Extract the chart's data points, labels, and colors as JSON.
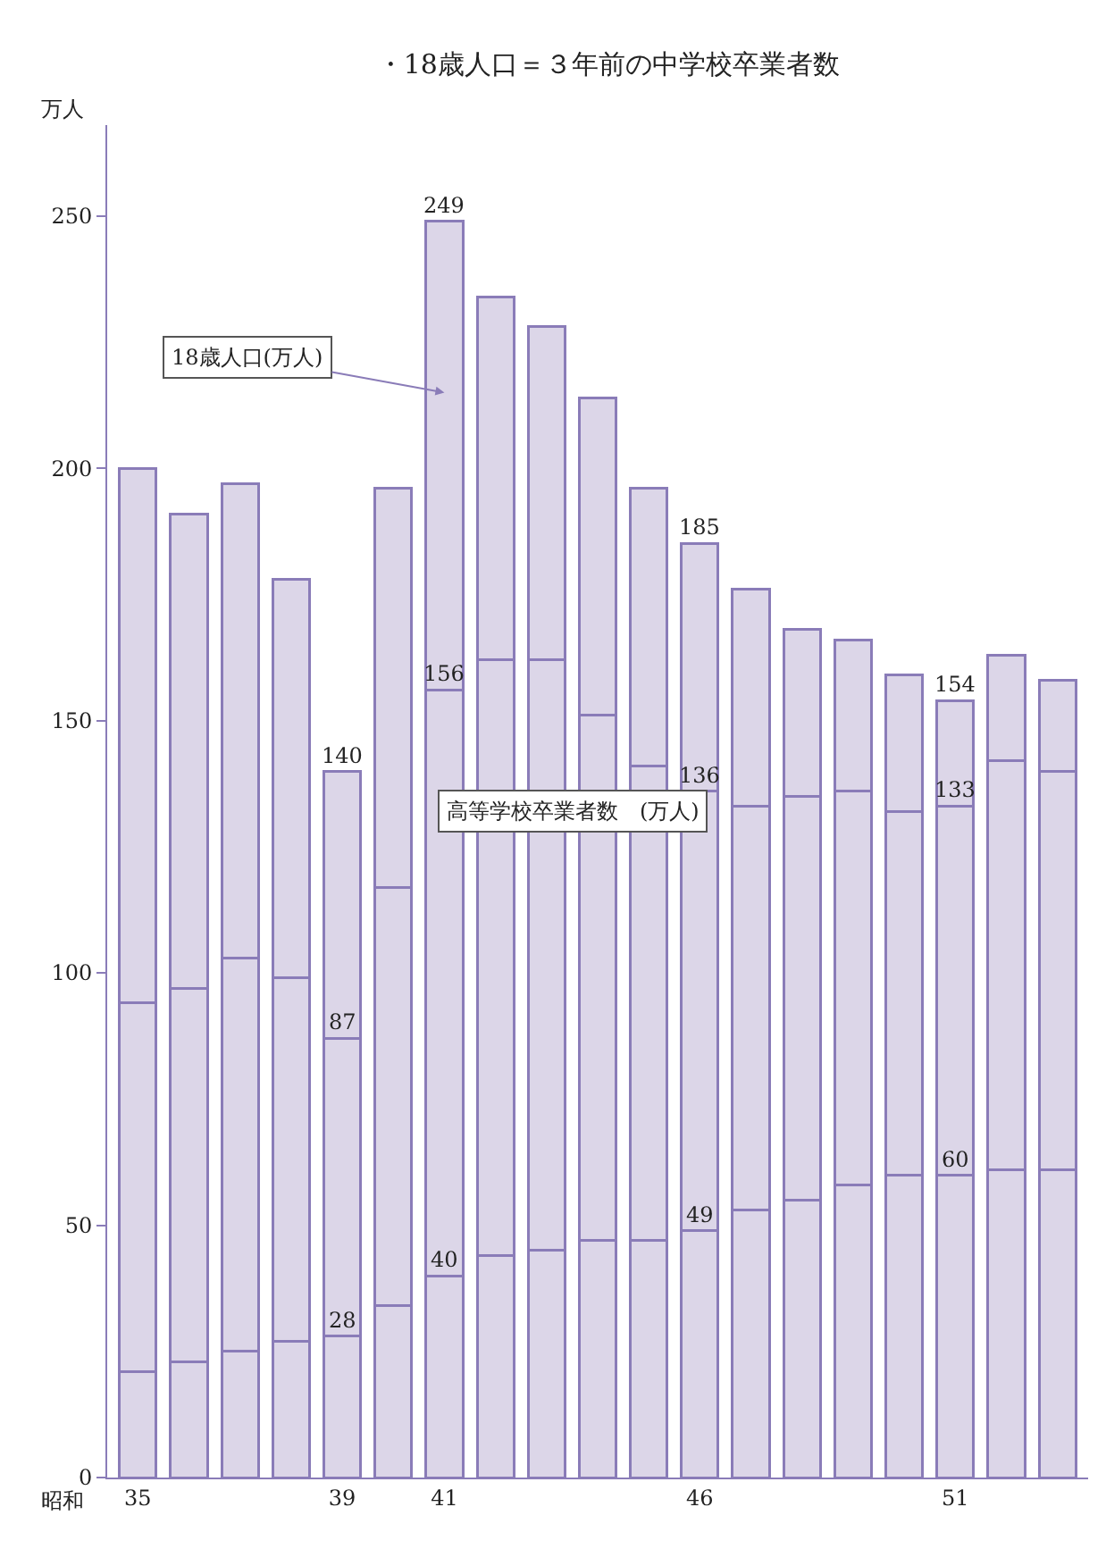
{
  "chart_data": {
    "type": "bar",
    "title": "・18歳人口＝３年前の中学校卒業者数",
    "xlabel": "昭和",
    "ylabel": "万人",
    "categories": [
      "35",
      null,
      null,
      null,
      "39",
      null,
      "41",
      null,
      null,
      null,
      null,
      "46",
      null,
      null,
      null,
      null,
      "51",
      null,
      null
    ],
    "stacked": true,
    "series": [
      {
        "color": "#dcd6e8",
        "values": [
          21,
          23,
          25,
          27,
          28,
          34,
          40,
          44,
          45,
          47,
          47,
          49,
          53,
          55,
          58,
          60,
          60,
          61,
          61
        ]
      },
      {
        "color": "#dcd6e8",
        "values": [
          73,
          74,
          78,
          72,
          59,
          83,
          116,
          118,
          117,
          104,
          94,
          87,
          80,
          80,
          78,
          72,
          73,
          81,
          79
        ]
      },
      {
        "color": "#dcd6e8",
        "values": [
          106,
          94,
          94,
          79,
          53,
          79,
          93,
          72,
          66,
          63,
          55,
          49,
          43,
          33,
          30,
          27,
          21,
          21,
          18
        ]
      }
    ],
    "annotations": [
      "18歳人口(万人)",
      "高等学校卒業者数　(万人)",
      {
        "text": "28",
        "x": "39",
        "y": 28
      },
      {
        "text": "87",
        "x": "39",
        "y": 87
      },
      {
        "text": "140",
        "x": "39",
        "y": 140
      },
      {
        "text": "40",
        "x": "41",
        "y": 40
      },
      {
        "text": "156",
        "x": "41",
        "y": 156
      },
      {
        "text": "249",
        "x": "41",
        "y": 249
      },
      {
        "text": "49",
        "x": "46",
        "y": 49
      },
      {
        "text": "136",
        "x": "46",
        "y": 136
      },
      {
        "text": "185",
        "x": "46",
        "y": 185
      },
      {
        "text": "60",
        "x": "51",
        "y": 60
      },
      {
        "text": "133",
        "x": "51",
        "y": 133
      },
      {
        "text": "154",
        "x": "51",
        "y": 154
      }
    ],
    "ylim": [
      0,
      268
    ],
    "yticks": [
      0,
      50,
      100,
      150,
      200,
      250
    ]
  }
}
